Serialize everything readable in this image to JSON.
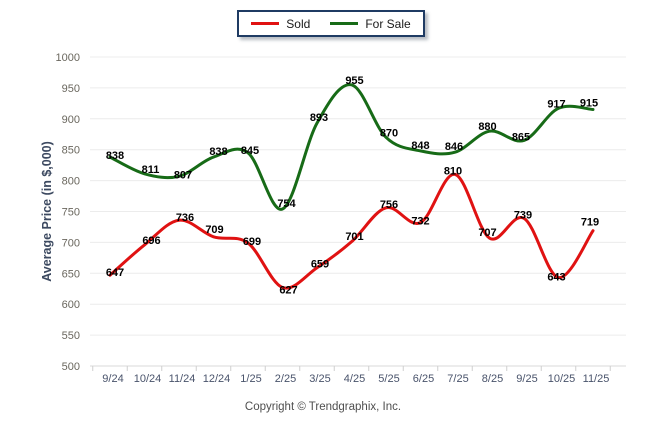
{
  "legend": {
    "items": [
      {
        "label": "Sold",
        "color": "#e01212"
      },
      {
        "label": "For Sale",
        "color": "#176b17"
      }
    ]
  },
  "chart_data": {
    "type": "line",
    "title": "",
    "xlabel": "",
    "ylabel": "Average Price (in $,000)",
    "categories": [
      "9/24",
      "10/24",
      "11/24",
      "12/24",
      "1/25",
      "2/25",
      "3/25",
      "4/25",
      "5/25",
      "6/25",
      "7/25",
      "8/25",
      "9/25",
      "10/25",
      "11/25"
    ],
    "series": [
      {
        "name": "Sold",
        "color": "#e01212",
        "values": [
          647,
          696,
          736,
          709,
          699,
          627,
          659,
          701,
          756,
          732,
          810,
          707,
          739,
          643,
          719
        ]
      },
      {
        "name": "For Sale",
        "color": "#176b17",
        "values": [
          838,
          811,
          807,
          838,
          845,
          754,
          893,
          955,
          870,
          848,
          846,
          880,
          865,
          917,
          915
        ]
      }
    ],
    "ylim": [
      500,
      1000
    ],
    "yticks": [
      500,
      550,
      600,
      650,
      700,
      750,
      800,
      850,
      900,
      950,
      1000
    ],
    "grid": true,
    "smooth": true,
    "data_labels": true,
    "legend_position": "top-center"
  },
  "footer": {
    "copyright": "Copyright © Trendgraphix, Inc."
  }
}
